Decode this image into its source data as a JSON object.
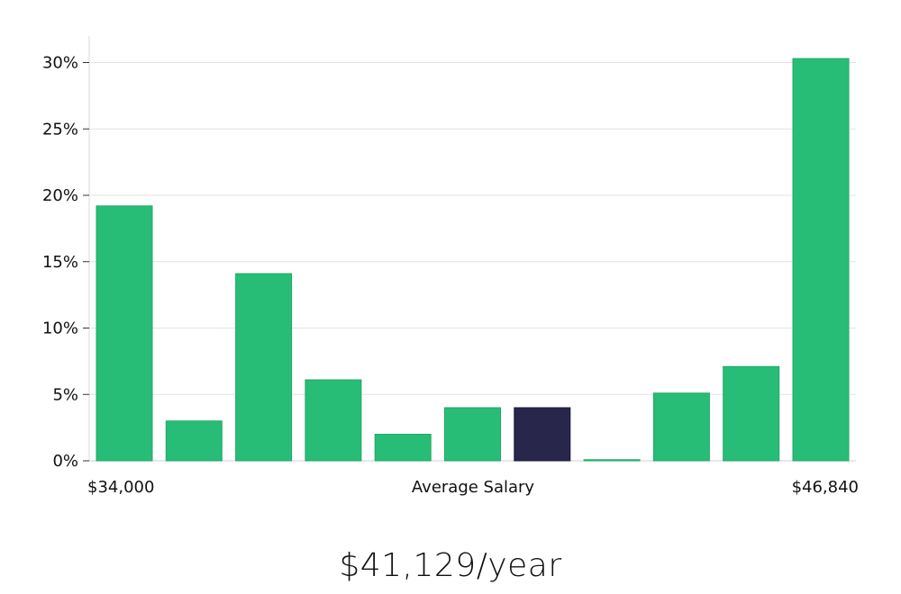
{
  "chart_data": {
    "type": "bar",
    "title": "",
    "xlabel": "Average Salary",
    "ylabel": "",
    "x_min_label": "$34,000",
    "x_max_label": "$46,840",
    "y_ticks": [
      0,
      5,
      10,
      15,
      20,
      25,
      30
    ],
    "y_tick_labels": [
      "0%",
      "5%",
      "10%",
      "15%",
      "20%",
      "25%",
      "30%"
    ],
    "ylim": [
      0,
      32
    ],
    "grid": true,
    "legend": "none",
    "values": [
      19.2,
      3.0,
      14.1,
      6.1,
      2.0,
      4.0,
      4.0,
      0.05,
      5.1,
      7.1,
      30.3
    ],
    "highlight_index": 6,
    "bar_color": "#28bd77",
    "highlight_color": "#28264a"
  },
  "headline": "$41,129/year"
}
